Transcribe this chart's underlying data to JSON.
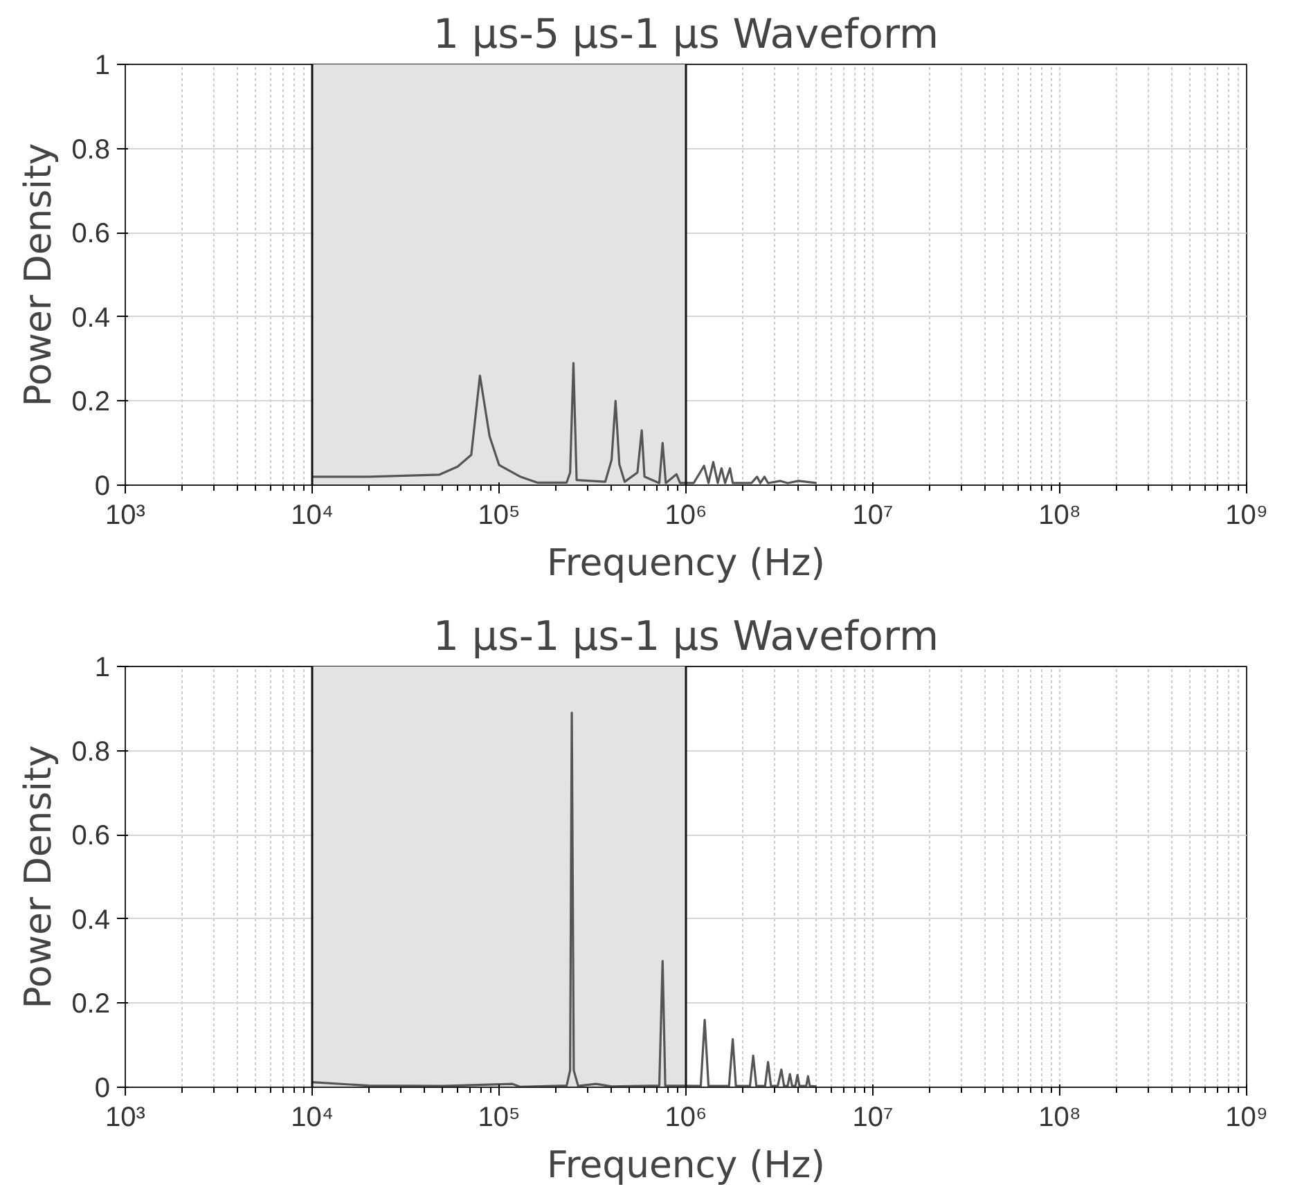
{
  "chart_data": [
    {
      "type": "line",
      "title": "1 µs-5 µs-1 µs Waveform",
      "xlabel": "Frequency (Hz)",
      "ylabel": "Power Density",
      "log": "x",
      "grid": true,
      "xlim": [
        1000,
        1000000000
      ],
      "ylim": [
        0,
        1
      ],
      "xticks": [
        {
          "value": 1000,
          "label": "10³"
        },
        {
          "value": 10000,
          "label": "10⁴"
        },
        {
          "value": 100000,
          "label": "10⁵"
        },
        {
          "value": 1000000,
          "label": "10⁶"
        },
        {
          "value": 10000000,
          "label": "10⁷"
        },
        {
          "value": 100000000,
          "label": "10⁸"
        },
        {
          "value": 1000000000,
          "label": "10⁹"
        }
      ],
      "yticks": [
        0,
        0.2,
        0.4,
        0.6,
        0.8,
        1
      ],
      "bands": [
        {
          "axis": "x",
          "from": 10000,
          "to": 1000000,
          "color": "#e3e3e3"
        }
      ],
      "series": [
        {
          "color": "#555555",
          "x": [
            10000,
            20000,
            48000,
            60000,
            71000,
            79000,
            89000,
            100000,
            130000,
            160000,
            230000,
            240000,
            250000,
            260000,
            370000,
            400000,
            420000,
            440000,
            470000,
            550000,
            580000,
            600000,
            720000,
            750000,
            780000,
            890000,
            930000,
            1100000,
            1250000,
            1320000,
            1400000,
            1480000,
            1550000,
            1620000,
            1720000,
            1780000,
            2240000,
            2400000,
            2500000,
            2630000,
            2750000,
            3200000,
            3500000,
            4000000,
            5000000
          ],
          "values": [
            0.02,
            0.02,
            0.025,
            0.044,
            0.072,
            0.26,
            0.116,
            0.048,
            0.02,
            0.006,
            0.006,
            0.03,
            0.29,
            0.012,
            0.008,
            0.06,
            0.2,
            0.05,
            0.008,
            0.03,
            0.13,
            0.02,
            0.005,
            0.1,
            0.005,
            0.026,
            0.005,
            0.005,
            0.046,
            0.005,
            0.055,
            0.005,
            0.04,
            0.005,
            0.04,
            0.005,
            0.005,
            0.02,
            0.005,
            0.02,
            0.005,
            0.01,
            0.005,
            0.01,
            0.005
          ]
        }
      ]
    },
    {
      "type": "line",
      "title": "1 µs-1 µs-1 µs Waveform",
      "xlabel": "Frequency (Hz)",
      "ylabel": "Power Density",
      "log": "x",
      "grid": true,
      "xlim": [
        1000,
        1000000000
      ],
      "ylim": [
        0,
        1
      ],
      "xticks": [
        {
          "value": 1000,
          "label": "10³"
        },
        {
          "value": 10000,
          "label": "10⁴"
        },
        {
          "value": 100000,
          "label": "10⁵"
        },
        {
          "value": 1000000,
          "label": "10⁶"
        },
        {
          "value": 10000000,
          "label": "10⁷"
        },
        {
          "value": 100000000,
          "label": "10⁸"
        },
        {
          "value": 1000000000,
          "label": "10⁹"
        }
      ],
      "yticks": [
        0,
        0.2,
        0.4,
        0.6,
        0.8,
        1
      ],
      "bands": [
        {
          "axis": "x",
          "from": 10000,
          "to": 1000000,
          "color": "#e3e3e3"
        }
      ],
      "series": [
        {
          "color": "#555555",
          "x": [
            10000,
            20000,
            50000,
            118000,
            130000,
            230000,
            240000,
            245000,
            251000,
            265000,
            330000,
            400000,
            720000,
            750000,
            775000,
            1200000,
            1260000,
            1320000,
            1700000,
            1780000,
            1850000,
            2200000,
            2290000,
            2380000,
            2650000,
            2750000,
            2850000,
            3100000,
            3240000,
            3350000,
            3500000,
            3600000,
            3700000,
            3850000,
            3950000,
            4050000,
            4400000,
            4500000,
            4600000,
            5000000
          ],
          "values": [
            0.012,
            0.004,
            0.003,
            0.008,
            0.001,
            0.004,
            0.04,
            0.89,
            0.04,
            0.003,
            0.008,
            0.002,
            0.004,
            0.3,
            0.004,
            0.003,
            0.16,
            0.003,
            0.003,
            0.114,
            0.003,
            0.003,
            0.075,
            0.003,
            0.003,
            0.06,
            0.003,
            0.003,
            0.042,
            0.003,
            0.003,
            0.031,
            0.003,
            0.003,
            0.029,
            0.003,
            0.003,
            0.026,
            0.003,
            0.002
          ]
        }
      ]
    }
  ]
}
